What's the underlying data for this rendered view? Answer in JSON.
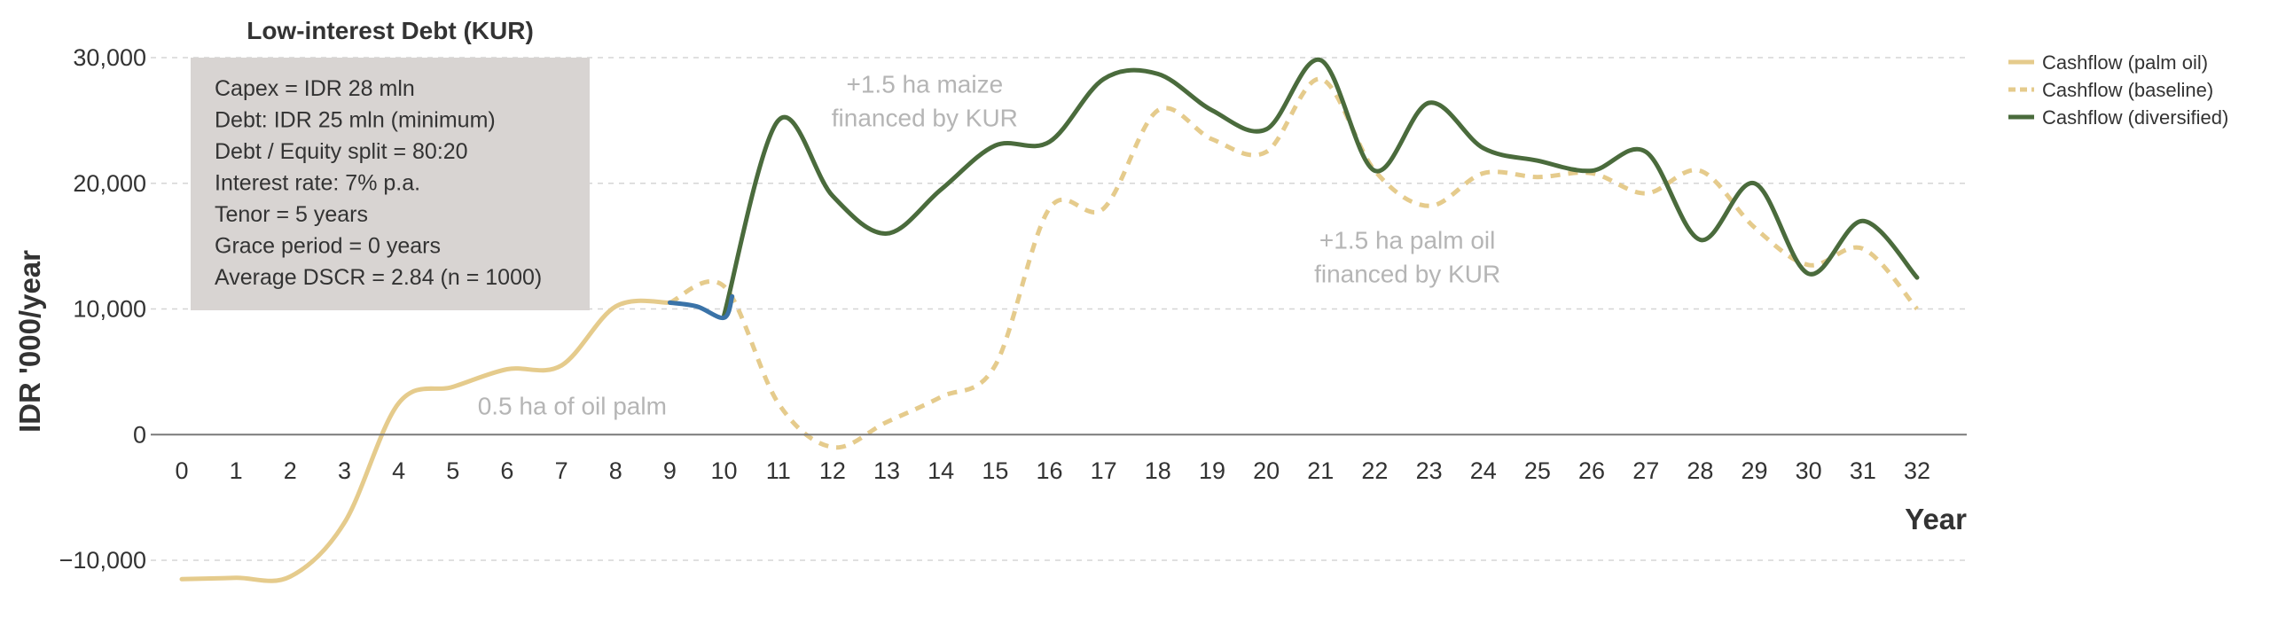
{
  "chart_data": {
    "type": "line",
    "title": "Low-interest Debt (KUR)",
    "xlabel": "Year",
    "ylabel": "IDR '000/year",
    "xlim": [
      0,
      32
    ],
    "ylim": [
      -10000,
      30000
    ],
    "x_ticks": [
      "0",
      "1",
      "2",
      "3",
      "4",
      "5",
      "6",
      "7",
      "8",
      "9",
      "10",
      "11",
      "12",
      "13",
      "14",
      "15",
      "16",
      "17",
      "18",
      "19",
      "20",
      "21",
      "22",
      "23",
      "24",
      "25",
      "26",
      "27",
      "28",
      "29",
      "30",
      "31",
      "32"
    ],
    "y_ticks": [
      {
        "value": -10000,
        "label": "−10,000"
      },
      {
        "value": 0,
        "label": "0"
      },
      {
        "value": 10000,
        "label": "10,000"
      },
      {
        "value": 20000,
        "label": "20,000"
      },
      {
        "value": 30000,
        "label": "30,000"
      }
    ],
    "grid": "horizontal dashed",
    "legend_position": "top-right",
    "series": [
      {
        "name": "Cashflow (palm oil)",
        "color": "#e5cb8c",
        "style": "solid",
        "x": [
          0,
          1,
          2,
          3,
          4,
          5,
          6,
          7,
          8,
          9
        ],
        "values": [
          -11500,
          -11400,
          -11300,
          -7000,
          2500,
          3800,
          5200,
          5500,
          10200,
          10500
        ]
      },
      {
        "name": "Cashflow (baseline)",
        "color": "#e5cb8c",
        "style": "dashed",
        "x": [
          9,
          10,
          11,
          12,
          13,
          14,
          15,
          16,
          17,
          18,
          19,
          20,
          21,
          22,
          23,
          24,
          25,
          26,
          27,
          28,
          29,
          30,
          31,
          32
        ],
        "values": [
          10500,
          11800,
          2500,
          -1000,
          1000,
          3000,
          5500,
          18000,
          18000,
          25800,
          23500,
          22500,
          28300,
          21000,
          18200,
          20800,
          20500,
          20800,
          19200,
          21000,
          16500,
          13500,
          14800,
          10000
        ]
      },
      {
        "name": "Cashflow (diversified)",
        "color": "#4a6b3c",
        "style": "solid",
        "x": [
          10,
          11,
          12,
          13,
          14,
          15,
          16,
          17,
          18,
          19,
          20,
          21,
          22,
          23,
          24,
          25,
          26,
          27,
          28,
          29,
          30,
          31,
          32
        ],
        "values": [
          9500,
          25000,
          19000,
          16000,
          19500,
          23000,
          23300,
          28300,
          28700,
          25800,
          24300,
          29800,
          21000,
          26400,
          22800,
          21800,
          21000,
          22500,
          15500,
          20000,
          12800,
          17000,
          12500
        ]
      },
      {
        "color": "#3a73a8",
        "style": "solid",
        "x": [
          9,
          9.5,
          10,
          10.15
        ],
        "values": [
          10500,
          10200,
          9300,
          11000
        ]
      }
    ],
    "info_box": [
      "Capex = IDR 28 mln",
      "Debt: IDR 25 mln (minimum)",
      "Debt / Equity split = 80:20",
      "Interest rate: 7% p.a.",
      "Tenor = 5 years",
      "Grace period = 0 years",
      "Average DSCR = 2.84 (n = 1000)"
    ],
    "annotations": [
      {
        "lines": [
          "+1.5 ha maize",
          "financed by KUR"
        ],
        "x": 13.7,
        "y": 27200
      },
      {
        "lines": [
          "+1.5 ha palm oil",
          "financed by KUR"
        ],
        "x": 22.6,
        "y": 14800
      },
      {
        "lines": [
          "0.5 ha of oil palm"
        ],
        "x": 7.2,
        "y": 1600
      }
    ]
  }
}
